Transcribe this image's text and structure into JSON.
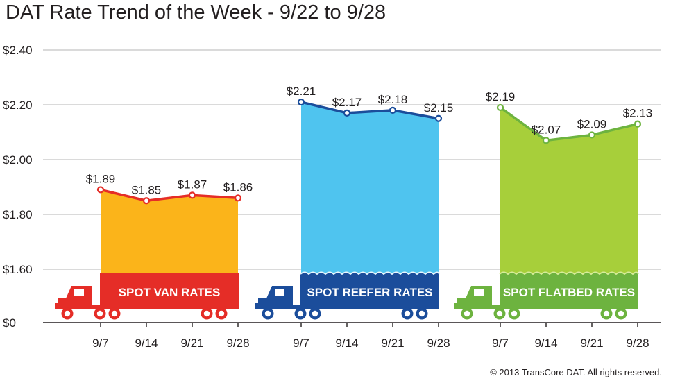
{
  "title": "DAT Rate Trend of the Week - 9/22 to 9/28",
  "copyright": "© 2013 TransCore DAT. All rights reserved.",
  "chart_data": {
    "type": "area",
    "y_axis": {
      "ylim": [
        0,
        2.4
      ],
      "ticks": [
        {
          "value": 0,
          "label": "$0"
        },
        {
          "value": 1.6,
          "label": "$1.60"
        },
        {
          "value": 1.8,
          "label": "$1.80"
        },
        {
          "value": 2.0,
          "label": "$2.00"
        },
        {
          "value": 2.2,
          "label": "$2.20"
        },
        {
          "value": 2.4,
          "label": "$2.40"
        }
      ],
      "note": "broken axis: between $0 and $1.60"
    },
    "grid": true,
    "panels": [
      {
        "name": "SPOT VAN RATES",
        "color": "#e52d27",
        "fill": "#fbb41a",
        "categories": [
          "9/7",
          "9/14",
          "9/21",
          "9/28"
        ],
        "values": [
          1.89,
          1.85,
          1.87,
          1.86
        ],
        "labels": [
          "$1.89",
          "$1.85",
          "$1.87",
          "$1.86"
        ]
      },
      {
        "name": "SPOT REEFER RATES",
        "color": "#1b4d9b",
        "fill": "#4fc4ef",
        "categories": [
          "9/7",
          "9/14",
          "9/21",
          "9/28"
        ],
        "values": [
          2.21,
          2.17,
          2.18,
          2.15
        ],
        "labels": [
          "$2.21",
          "$2.17",
          "$2.18",
          "$2.15"
        ]
      },
      {
        "name": "SPOT FLATBED RATES",
        "color": "#6db33f",
        "fill": "#a7cf3a",
        "categories": [
          "9/7",
          "9/14",
          "9/21",
          "9/28"
        ],
        "values": [
          2.19,
          2.07,
          2.09,
          2.13
        ],
        "labels": [
          "$2.19",
          "$2.07",
          "$2.09",
          "$2.13"
        ]
      }
    ]
  }
}
